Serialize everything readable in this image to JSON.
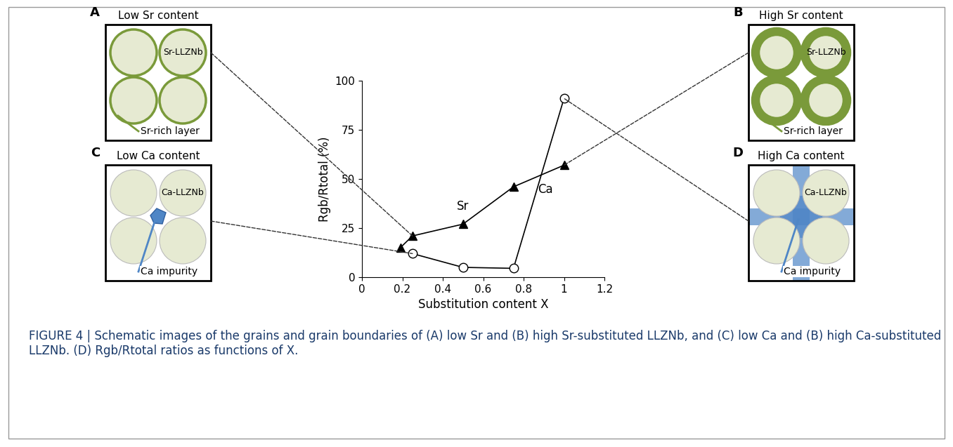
{
  "panels": [
    {
      "letter": "A",
      "title": "Low Sr content",
      "grain_label": "Sr-LLZNb",
      "feature_label": "Sr-rich layer"
    },
    {
      "letter": "B",
      "title": "High Sr content",
      "grain_label": "Sr-LLZNb",
      "feature_label": "Sr-rich layer"
    },
    {
      "letter": "C",
      "title": "Low Ca content",
      "grain_label": "Ca-LLZNb",
      "feature_label": "Ca impurity"
    },
    {
      "letter": "D",
      "title": "High Ca content",
      "grain_label": "Ca-LLZNb",
      "feature_label": "Ca impurity"
    }
  ],
  "chart_data": {
    "type": "line",
    "x_label": "Substitution content X",
    "y_label": "Rgb/Rtotal (%)",
    "xlim": [
      0,
      1.2
    ],
    "xticks": [
      0,
      0.2,
      0.4,
      0.6,
      0.8,
      1,
      1.2
    ],
    "ylim": [
      0,
      100
    ],
    "yticks": [
      0,
      25,
      50,
      75,
      100
    ],
    "series": [
      {
        "name": "Sr",
        "color": "#000000",
        "marker": "triangle",
        "x": [
          0.19,
          0.25,
          0.5,
          0.75,
          1.0
        ],
        "values": [
          15,
          21,
          27,
          46,
          57
        ]
      },
      {
        "name": "Ca",
        "color": "#000000",
        "marker": "circle",
        "x": [
          0.25,
          0.5,
          0.75,
          1.0
        ],
        "values": [
          12,
          5,
          4.5,
          91
        ]
      }
    ]
  },
  "caption": "FIGURE 4 | Schematic images of the grains and grain boundaries of (A) low Sr and (B) high Sr-substituted LLZNb, and (C) low Ca and (B) high Ca-substituted LLZNb. (D) Rgb/Rtotal ratios as functions of X."
}
